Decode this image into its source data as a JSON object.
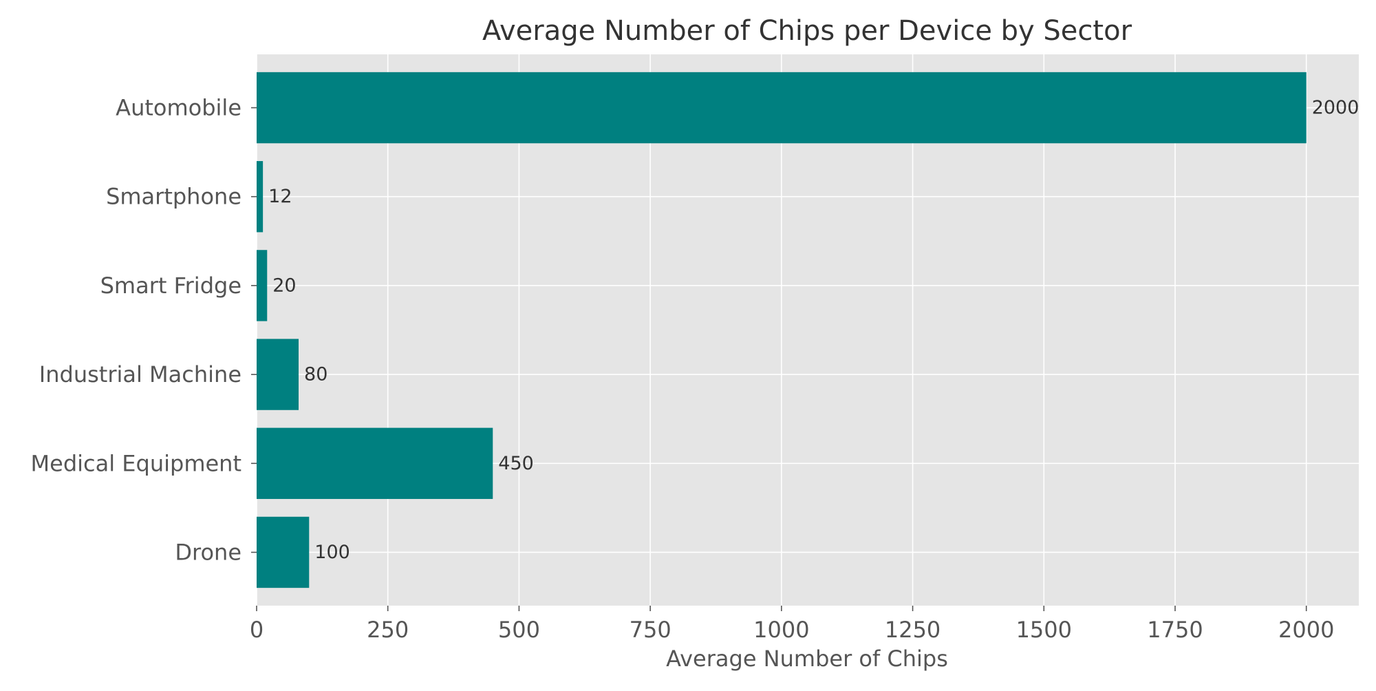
{
  "chart_data": {
    "type": "bar",
    "orientation": "horizontal",
    "title": "Average Number of Chips per Device by Sector",
    "xlabel": "Average Number of Chips",
    "ylabel": "",
    "categories": [
      "Automobile",
      "Smartphone",
      "Smart Fridge",
      "Industrial Machine",
      "Medical Equipment",
      "Drone"
    ],
    "values": [
      2000,
      12,
      20,
      80,
      450,
      100
    ],
    "data_labels": [
      "2000",
      "12",
      "20",
      "80",
      "450",
      "100"
    ],
    "xlim": [
      0,
      2100
    ],
    "x_ticks": [
      0,
      250,
      500,
      750,
      1000,
      1250,
      1500,
      1750,
      2000
    ],
    "grid": true,
    "colors": {
      "bar": "#008080",
      "plot_background": "#e5e5e5",
      "grid": "#ffffff"
    }
  }
}
